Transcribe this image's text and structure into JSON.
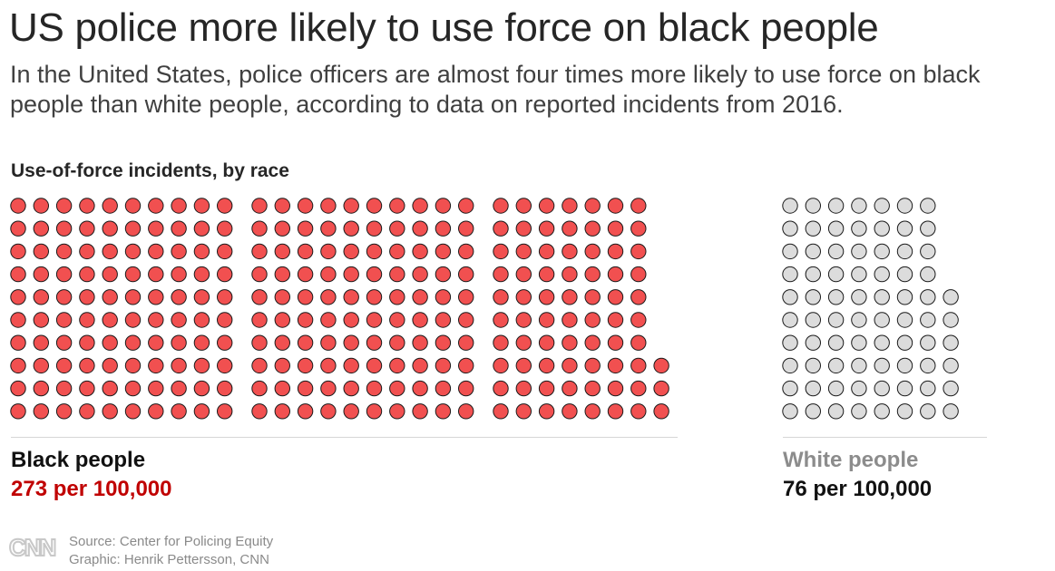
{
  "title": "US police more likely to use force on black people",
  "subtitle": "In the United States, police officers are almost four times more likely to use force on black people than white people, according to data on reported incidents from 2016.",
  "chart_heading": "Use-of-force incidents, by race",
  "colors": {
    "black_fill": "#f15050",
    "white_fill": "#dcdcdc",
    "dot_stroke": "#1a1a1a",
    "black_rate": "#c00000",
    "white_label": "#8c8c8c"
  },
  "chart_data": {
    "type": "pictogram",
    "title": "Use-of-force incidents, by race",
    "unit": "per 100,000",
    "series": [
      {
        "name": "Black people",
        "value": 273,
        "value_label": "273 per 100,000"
      },
      {
        "name": "White people",
        "value": 76,
        "value_label": "76 per 100,000"
      }
    ]
  },
  "footer": {
    "source": "Source: Center for Policing Equity",
    "graphic": "Graphic: Henrik Pettersson, CNN",
    "logo_text": "CNN"
  }
}
